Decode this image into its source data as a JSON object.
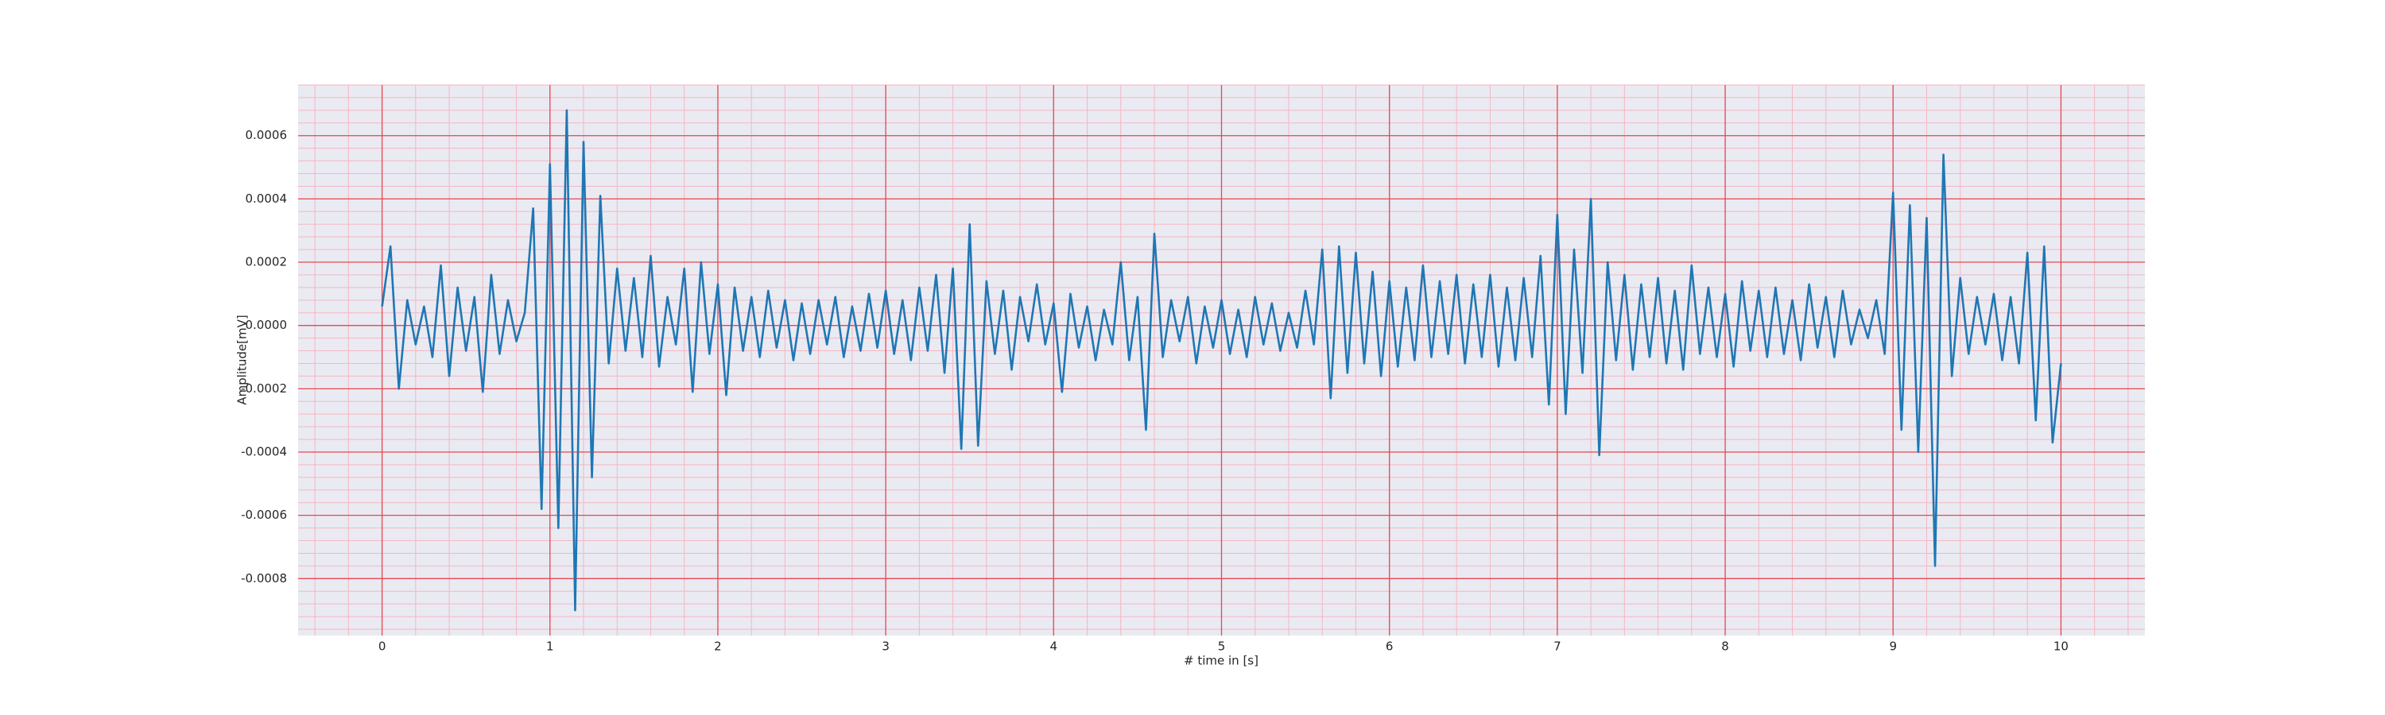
{
  "chart_data": {
    "type": "line",
    "xlabel": "# time in [s]",
    "ylabel": "Amplitude[mV]",
    "x": [
      0,
      0.05,
      0.1,
      0.15,
      0.2,
      0.25,
      0.3,
      0.35,
      0.4,
      0.45,
      0.5,
      0.55,
      0.6,
      0.65,
      0.7,
      0.75,
      0.8,
      0.85,
      0.9,
      0.95,
      1,
      1.05,
      1.1,
      1.15,
      1.2,
      1.25,
      1.3,
      1.35,
      1.4,
      1.45,
      1.5,
      1.55,
      1.6,
      1.65,
      1.7,
      1.75,
      1.8,
      1.85,
      1.9,
      1.95,
      2,
      2.05,
      2.1,
      2.15,
      2.2,
      2.25,
      2.3,
      2.35,
      2.4,
      2.45,
      2.5,
      2.55,
      2.6,
      2.65,
      2.7,
      2.75,
      2.8,
      2.85,
      2.9,
      2.95,
      3,
      3.05,
      3.1,
      3.15,
      3.2,
      3.25,
      3.3,
      3.35,
      3.4,
      3.45,
      3.5,
      3.55,
      3.6,
      3.65,
      3.7,
      3.75,
      3.8,
      3.85,
      3.9,
      3.95,
      4,
      4.05,
      4.1,
      4.15,
      4.2,
      4.25,
      4.3,
      4.35,
      4.4,
      4.45,
      4.5,
      4.55,
      4.6,
      4.65,
      4.7,
      4.75,
      4.8,
      4.85,
      4.9,
      4.95,
      5,
      5.05,
      5.1,
      5.15,
      5.2,
      5.25,
      5.3,
      5.35,
      5.4,
      5.45,
      5.5,
      5.55,
      5.6,
      5.65,
      5.7,
      5.75,
      5.8,
      5.85,
      5.9,
      5.95,
      6,
      6.05,
      6.1,
      6.15,
      6.2,
      6.25,
      6.3,
      6.35,
      6.4,
      6.45,
      6.5,
      6.55,
      6.6,
      6.65,
      6.7,
      6.75,
      6.8,
      6.85,
      6.9,
      6.95,
      7,
      7.05,
      7.1,
      7.15,
      7.2,
      7.25,
      7.3,
      7.35,
      7.4,
      7.45,
      7.5,
      7.55,
      7.6,
      7.65,
      7.7,
      7.75,
      7.8,
      7.85,
      7.9,
      7.95,
      8,
      8.05,
      8.1,
      8.15,
      8.2,
      8.25,
      8.3,
      8.35,
      8.4,
      8.45,
      8.5,
      8.55,
      8.6,
      8.65,
      8.7,
      8.75,
      8.8,
      8.85,
      8.9,
      8.95,
      9,
      9.05,
      9.1,
      9.15,
      9.2,
      9.25,
      9.3,
      9.35,
      9.4,
      9.45,
      9.5,
      9.55,
      9.6,
      9.65,
      9.7,
      9.75,
      9.8,
      9.85,
      9.9,
      9.95,
      10
    ],
    "values": [
      6e-05,
      0.00025,
      -0.0002,
      8e-05,
      -6e-05,
      6e-05,
      -0.0001,
      0.00019,
      -0.00016,
      0.00012,
      -8e-05,
      9e-05,
      -0.00021,
      0.00016,
      -9e-05,
      8e-05,
      -5e-05,
      4e-05,
      0.00037,
      -0.00058,
      0.00051,
      -0.00064,
      0.00068,
      -0.0009,
      0.00058,
      -0.00048,
      0.00041,
      -0.00012,
      0.00018,
      -8e-05,
      0.00015,
      -0.0001,
      0.00022,
      -0.00013,
      9e-05,
      -6e-05,
      0.00018,
      -0.00021,
      0.0002,
      -9e-05,
      0.00013,
      -0.00022,
      0.00012,
      -8e-05,
      9e-05,
      -0.0001,
      0.00011,
      -7e-05,
      8e-05,
      -0.00011,
      7e-05,
      -9e-05,
      8e-05,
      -6e-05,
      9e-05,
      -0.0001,
      6e-05,
      -8e-05,
      0.0001,
      -7e-05,
      0.00011,
      -9e-05,
      8e-05,
      -0.00011,
      0.00012,
      -8e-05,
      0.00016,
      -0.00015,
      0.00018,
      -0.00039,
      0.00032,
      -0.00038,
      0.00014,
      -9e-05,
      0.00011,
      -0.00014,
      9e-05,
      -5e-05,
      0.00013,
      -6e-05,
      7e-05,
      -0.00021,
      0.0001,
      -7e-05,
      6e-05,
      -0.00011,
      5e-05,
      -6e-05,
      0.0002,
      -0.00011,
      9e-05,
      -0.00033,
      0.00029,
      -0.0001,
      8e-05,
      -5e-05,
      9e-05,
      -0.00012,
      6e-05,
      -7e-05,
      8e-05,
      -9e-05,
      5e-05,
      -0.0001,
      9e-05,
      -6e-05,
      7e-05,
      -8e-05,
      4e-05,
      -7e-05,
      0.00011,
      -6e-05,
      0.00024,
      -0.00023,
      0.00025,
      -0.00015,
      0.00023,
      -0.00012,
      0.00017,
      -0.00016,
      0.00014,
      -0.00013,
      0.00012,
      -0.00011,
      0.00019,
      -0.0001,
      0.00014,
      -9e-05,
      0.00016,
      -0.00012,
      0.00013,
      -0.0001,
      0.00016,
      -0.00013,
      0.00012,
      -0.00011,
      0.00015,
      -0.0001,
      0.00022,
      -0.00025,
      0.00035,
      -0.00028,
      0.00024,
      -0.00015,
      0.0004,
      -0.00041,
      0.0002,
      -0.00011,
      0.00016,
      -0.00014,
      0.00013,
      -0.0001,
      0.00015,
      -0.00012,
      0.00011,
      -0.00014,
      0.00019,
      -9e-05,
      0.00012,
      -0.0001,
      0.0001,
      -0.00013,
      0.00014,
      -8e-05,
      0.00011,
      -0.0001,
      0.00012,
      -9e-05,
      8e-05,
      -0.00011,
      0.00013,
      -7e-05,
      9e-05,
      -0.0001,
      0.00011,
      -6e-05,
      5e-05,
      -4e-05,
      8e-05,
      -9e-05,
      0.00042,
      -0.00033,
      0.00038,
      -0.0004,
      0.00034,
      -0.00076,
      0.00054,
      -0.00016,
      0.00015,
      -9e-05,
      9e-05,
      -6e-05,
      0.0001,
      -0.00011,
      9e-05,
      -0.00012,
      0.00023,
      -0.0003,
      0.00025,
      -0.00037,
      -0.00012
    ],
    "color": "#1f77b4",
    "xlim": [
      -0.5,
      10.5
    ],
    "xticks": [
      0,
      1,
      2,
      3,
      4,
      5,
      6,
      7,
      8,
      9,
      10
    ],
    "ylim": [
      -0.00098,
      0.00076
    ],
    "yticks": [
      -0.0008,
      -0.0006,
      -0.0004,
      -0.0002,
      {
        "value": 0,
        "label": "0.0000"
      },
      0.0002,
      0.0004,
      0.0006
    ],
    "grid": true,
    "minor_divisions": 5
  }
}
